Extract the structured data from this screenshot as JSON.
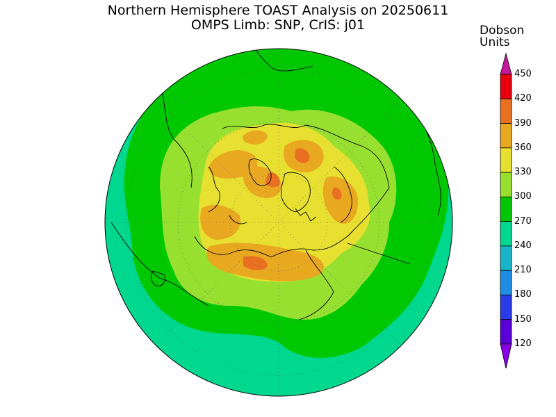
{
  "header": {
    "title": "Northern Hemisphere TOAST Analysis on 20250611",
    "subtitle": "OMPS Limb: SNP, CrIS: j01"
  },
  "colorbar": {
    "title_line1": "Dobson",
    "title_line2": "Units",
    "levels": [
      "120",
      "150",
      "180",
      "210",
      "240",
      "270",
      "300",
      "330",
      "360",
      "390",
      "420",
      "450"
    ],
    "colors": [
      "#8800e6",
      "#5a00d6",
      "#2a3ce8",
      "#1e8ce0",
      "#18b4c8",
      "#00d890",
      "#00c800",
      "#98e030",
      "#e8e030",
      "#e8a820",
      "#e87020",
      "#e80010",
      "#c8189a"
    ]
  },
  "map": {
    "projection": "north-polar-stereographic",
    "dominant_band": "270-300 DU",
    "edge_band": "240-270 DU",
    "polar_band": "330-390 DU"
  }
}
